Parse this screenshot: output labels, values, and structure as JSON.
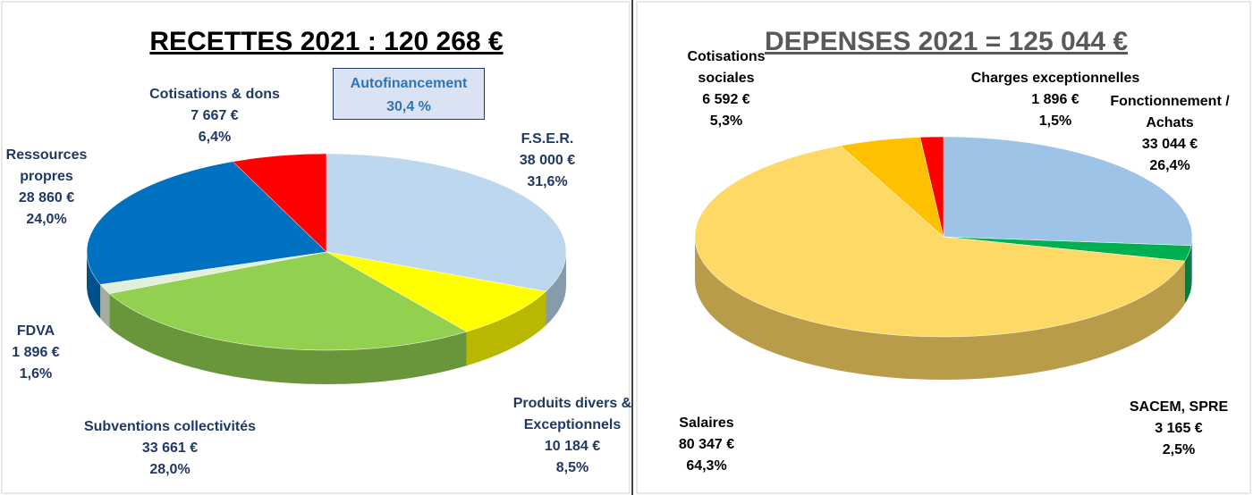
{
  "chart_data": [
    {
      "type": "pie",
      "title": "RECETTES 2021 : 120 268 €",
      "annotation": [
        "Autofinancement",
        "30,4 %"
      ],
      "categories": [
        "F.S.E.R.",
        "Produits divers & Exceptionnels",
        "Subventions collectivités",
        "FDVA",
        "Ressources propres",
        "Cotisations & dons"
      ],
      "values": [
        31.6,
        8.5,
        28.0,
        1.6,
        24.0,
        6.4
      ],
      "value_labels": [
        "31,6%",
        "8,5%",
        "28,0%",
        "1,6%",
        "24,0%",
        "6,4%"
      ],
      "amounts": [
        38000,
        10184,
        33661,
        1896,
        28860,
        7667
      ],
      "amount_labels": [
        "38 000 €",
        "10 184 €",
        "33 661 €",
        "1 896 €",
        "28 860 €",
        "7 667 €"
      ],
      "colors": [
        "#bdd7ee",
        "#ffff00",
        "#92d050",
        "#e2efda",
        "#0070c0",
        "#ff0000"
      ]
    },
    {
      "type": "pie",
      "title": "DEPENSES 2021 = 125 044 €",
      "categories": [
        "Fonctionnement / Achats",
        "SACEM, SPRE",
        "Salaires",
        "Cotisations sociales",
        "Charges exceptionnelles"
      ],
      "values": [
        26.4,
        2.5,
        64.3,
        5.3,
        1.5
      ],
      "value_labels": [
        "26,4%",
        "2,5%",
        "64,3%",
        "5,3%",
        "1,5%"
      ],
      "amounts": [
        33044,
        3165,
        80347,
        6592,
        1896
      ],
      "amount_labels": [
        "33 044 €",
        "3 165 €",
        "80 347 €",
        "6 592 €",
        "1 896 €"
      ],
      "colors": [
        "#9dc3e6",
        "#00b050",
        "#ffd966",
        "#ffc000",
        "#ff0000"
      ]
    }
  ]
}
